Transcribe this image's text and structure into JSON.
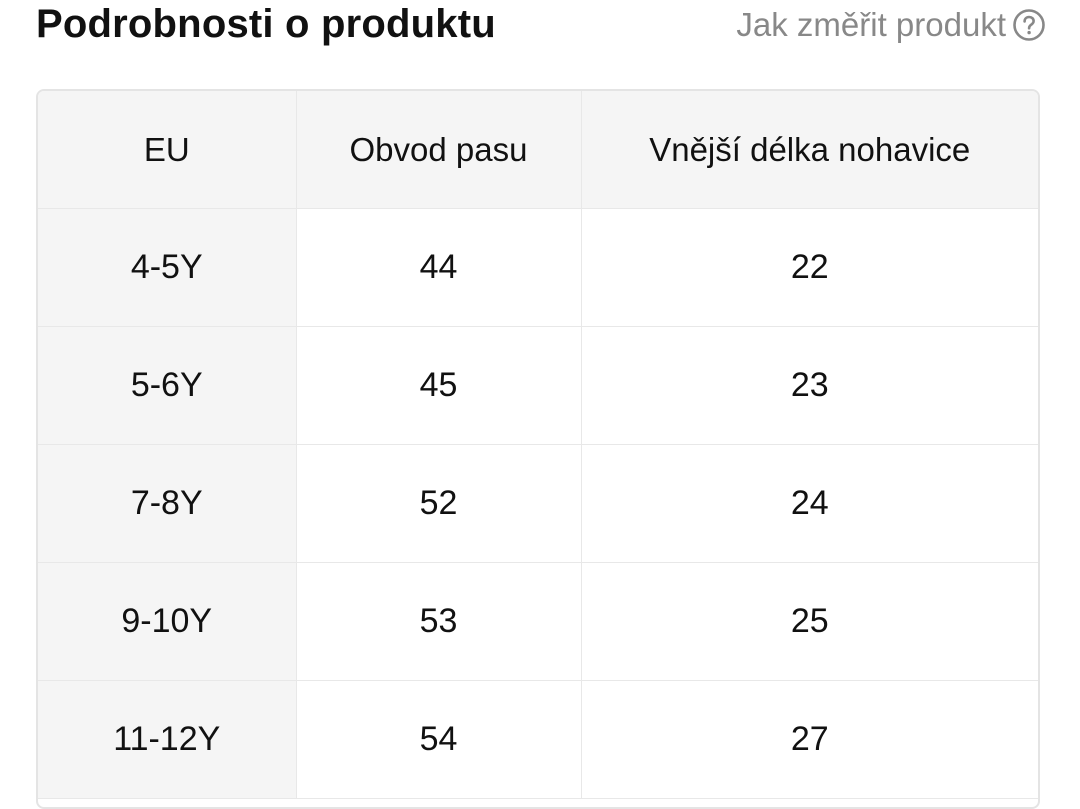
{
  "header": {
    "title": "Podrobnosti o produktu",
    "measure_link_label": "Jak změřit produkt",
    "help_icon": "question-circle-icon"
  },
  "table": {
    "columns": [
      "EU",
      "Obvod pasu",
      "Vnější délka nohavice"
    ],
    "rows": [
      [
        "4-5Y",
        "44",
        "22"
      ],
      [
        "5-6Y",
        "45",
        "23"
      ],
      [
        "7-8Y",
        "52",
        "24"
      ],
      [
        "9-10Y",
        "53",
        "25"
      ],
      [
        "11-12Y",
        "54",
        "27"
      ]
    ]
  },
  "colors": {
    "title_text": "#111111",
    "link_text": "#888888",
    "header_bg": "#f5f5f5",
    "border": "#e4e4e4"
  }
}
